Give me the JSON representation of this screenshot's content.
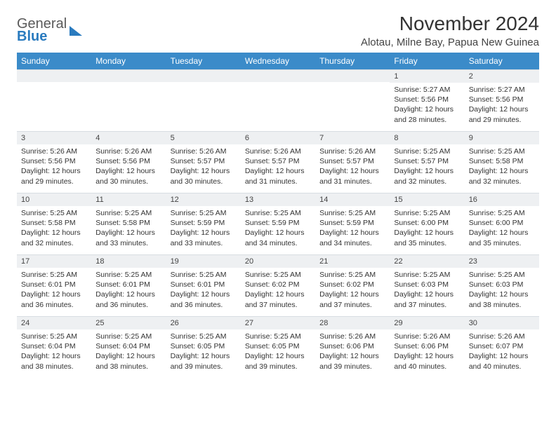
{
  "logo": {
    "word1": "General",
    "word2": "Blue"
  },
  "header": {
    "month_title": "November 2024",
    "location": "Alotau, Milne Bay, Papua New Guinea"
  },
  "colors": {
    "header_bg": "#3b8bc9",
    "header_text": "#ffffff",
    "daynum_bg": "#eef0f2",
    "page_bg": "#ffffff",
    "text": "#333333"
  },
  "days_of_week": [
    "Sunday",
    "Monday",
    "Tuesday",
    "Wednesday",
    "Thursday",
    "Friday",
    "Saturday"
  ],
  "weeks": [
    [
      {
        "n": "",
        "sunrise": "",
        "sunset": "",
        "daylight": ""
      },
      {
        "n": "",
        "sunrise": "",
        "sunset": "",
        "daylight": ""
      },
      {
        "n": "",
        "sunrise": "",
        "sunset": "",
        "daylight": ""
      },
      {
        "n": "",
        "sunrise": "",
        "sunset": "",
        "daylight": ""
      },
      {
        "n": "",
        "sunrise": "",
        "sunset": "",
        "daylight": ""
      },
      {
        "n": "1",
        "sunrise": "Sunrise: 5:27 AM",
        "sunset": "Sunset: 5:56 PM",
        "daylight": "Daylight: 12 hours and 28 minutes."
      },
      {
        "n": "2",
        "sunrise": "Sunrise: 5:27 AM",
        "sunset": "Sunset: 5:56 PM",
        "daylight": "Daylight: 12 hours and 29 minutes."
      }
    ],
    [
      {
        "n": "3",
        "sunrise": "Sunrise: 5:26 AM",
        "sunset": "Sunset: 5:56 PM",
        "daylight": "Daylight: 12 hours and 29 minutes."
      },
      {
        "n": "4",
        "sunrise": "Sunrise: 5:26 AM",
        "sunset": "Sunset: 5:56 PM",
        "daylight": "Daylight: 12 hours and 30 minutes."
      },
      {
        "n": "5",
        "sunrise": "Sunrise: 5:26 AM",
        "sunset": "Sunset: 5:57 PM",
        "daylight": "Daylight: 12 hours and 30 minutes."
      },
      {
        "n": "6",
        "sunrise": "Sunrise: 5:26 AM",
        "sunset": "Sunset: 5:57 PM",
        "daylight": "Daylight: 12 hours and 31 minutes."
      },
      {
        "n": "7",
        "sunrise": "Sunrise: 5:26 AM",
        "sunset": "Sunset: 5:57 PM",
        "daylight": "Daylight: 12 hours and 31 minutes."
      },
      {
        "n": "8",
        "sunrise": "Sunrise: 5:25 AM",
        "sunset": "Sunset: 5:57 PM",
        "daylight": "Daylight: 12 hours and 32 minutes."
      },
      {
        "n": "9",
        "sunrise": "Sunrise: 5:25 AM",
        "sunset": "Sunset: 5:58 PM",
        "daylight": "Daylight: 12 hours and 32 minutes."
      }
    ],
    [
      {
        "n": "10",
        "sunrise": "Sunrise: 5:25 AM",
        "sunset": "Sunset: 5:58 PM",
        "daylight": "Daylight: 12 hours and 32 minutes."
      },
      {
        "n": "11",
        "sunrise": "Sunrise: 5:25 AM",
        "sunset": "Sunset: 5:58 PM",
        "daylight": "Daylight: 12 hours and 33 minutes."
      },
      {
        "n": "12",
        "sunrise": "Sunrise: 5:25 AM",
        "sunset": "Sunset: 5:59 PM",
        "daylight": "Daylight: 12 hours and 33 minutes."
      },
      {
        "n": "13",
        "sunrise": "Sunrise: 5:25 AM",
        "sunset": "Sunset: 5:59 PM",
        "daylight": "Daylight: 12 hours and 34 minutes."
      },
      {
        "n": "14",
        "sunrise": "Sunrise: 5:25 AM",
        "sunset": "Sunset: 5:59 PM",
        "daylight": "Daylight: 12 hours and 34 minutes."
      },
      {
        "n": "15",
        "sunrise": "Sunrise: 5:25 AM",
        "sunset": "Sunset: 6:00 PM",
        "daylight": "Daylight: 12 hours and 35 minutes."
      },
      {
        "n": "16",
        "sunrise": "Sunrise: 5:25 AM",
        "sunset": "Sunset: 6:00 PM",
        "daylight": "Daylight: 12 hours and 35 minutes."
      }
    ],
    [
      {
        "n": "17",
        "sunrise": "Sunrise: 5:25 AM",
        "sunset": "Sunset: 6:01 PM",
        "daylight": "Daylight: 12 hours and 36 minutes."
      },
      {
        "n": "18",
        "sunrise": "Sunrise: 5:25 AM",
        "sunset": "Sunset: 6:01 PM",
        "daylight": "Daylight: 12 hours and 36 minutes."
      },
      {
        "n": "19",
        "sunrise": "Sunrise: 5:25 AM",
        "sunset": "Sunset: 6:01 PM",
        "daylight": "Daylight: 12 hours and 36 minutes."
      },
      {
        "n": "20",
        "sunrise": "Sunrise: 5:25 AM",
        "sunset": "Sunset: 6:02 PM",
        "daylight": "Daylight: 12 hours and 37 minutes."
      },
      {
        "n": "21",
        "sunrise": "Sunrise: 5:25 AM",
        "sunset": "Sunset: 6:02 PM",
        "daylight": "Daylight: 12 hours and 37 minutes."
      },
      {
        "n": "22",
        "sunrise": "Sunrise: 5:25 AM",
        "sunset": "Sunset: 6:03 PM",
        "daylight": "Daylight: 12 hours and 37 minutes."
      },
      {
        "n": "23",
        "sunrise": "Sunrise: 5:25 AM",
        "sunset": "Sunset: 6:03 PM",
        "daylight": "Daylight: 12 hours and 38 minutes."
      }
    ],
    [
      {
        "n": "24",
        "sunrise": "Sunrise: 5:25 AM",
        "sunset": "Sunset: 6:04 PM",
        "daylight": "Daylight: 12 hours and 38 minutes."
      },
      {
        "n": "25",
        "sunrise": "Sunrise: 5:25 AM",
        "sunset": "Sunset: 6:04 PM",
        "daylight": "Daylight: 12 hours and 38 minutes."
      },
      {
        "n": "26",
        "sunrise": "Sunrise: 5:25 AM",
        "sunset": "Sunset: 6:05 PM",
        "daylight": "Daylight: 12 hours and 39 minutes."
      },
      {
        "n": "27",
        "sunrise": "Sunrise: 5:25 AM",
        "sunset": "Sunset: 6:05 PM",
        "daylight": "Daylight: 12 hours and 39 minutes."
      },
      {
        "n": "28",
        "sunrise": "Sunrise: 5:26 AM",
        "sunset": "Sunset: 6:06 PM",
        "daylight": "Daylight: 12 hours and 39 minutes."
      },
      {
        "n": "29",
        "sunrise": "Sunrise: 5:26 AM",
        "sunset": "Sunset: 6:06 PM",
        "daylight": "Daylight: 12 hours and 40 minutes."
      },
      {
        "n": "30",
        "sunrise": "Sunrise: 5:26 AM",
        "sunset": "Sunset: 6:07 PM",
        "daylight": "Daylight: 12 hours and 40 minutes."
      }
    ]
  ]
}
